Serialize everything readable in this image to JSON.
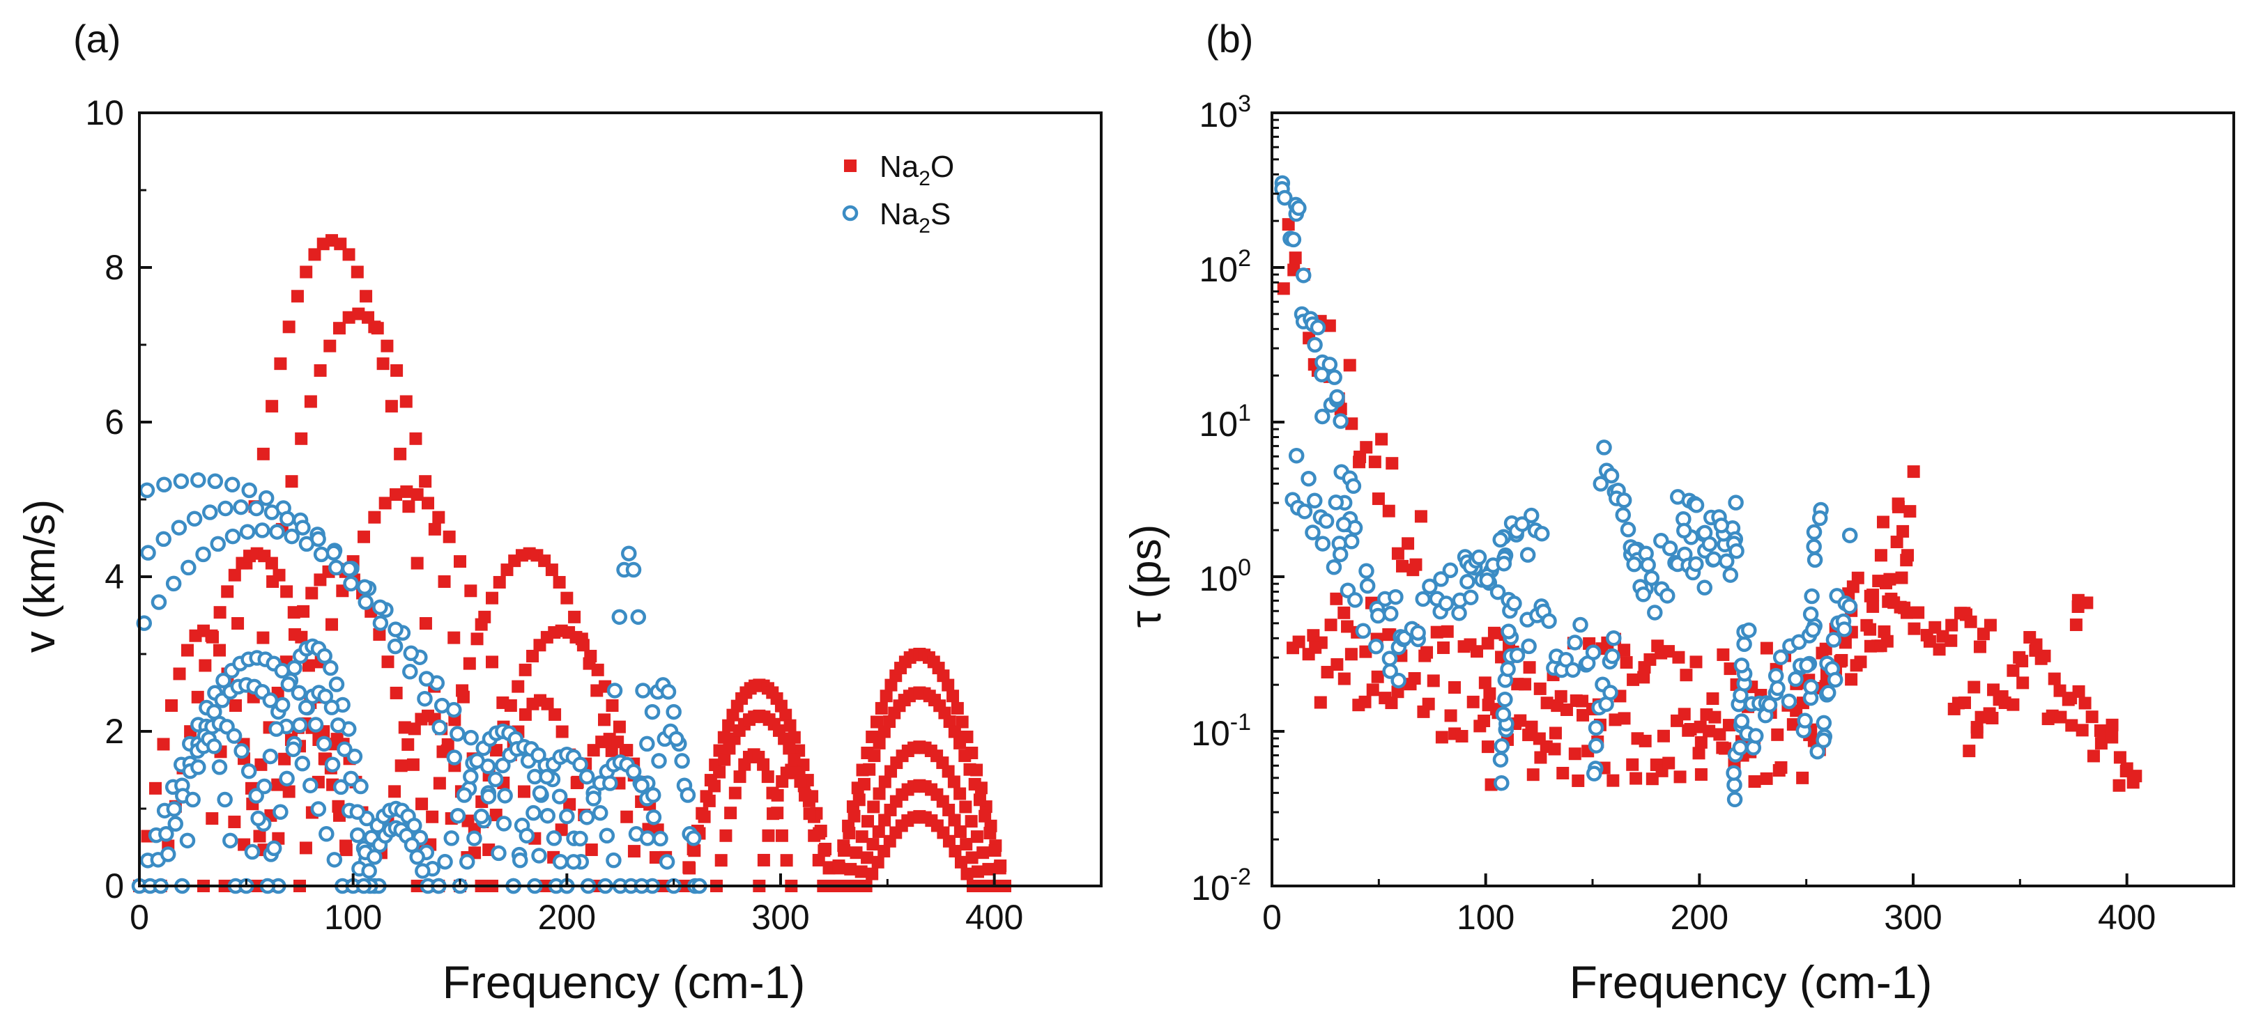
{
  "colors": {
    "na2o": "#e3201f",
    "na2s": "#3b8cc4",
    "axis": "#111111"
  },
  "chart_data": [
    {
      "panel_label": "(a)",
      "type": "scatter",
      "xlabel": "Frequency (cm-1)",
      "ylabel": "v (km/s)",
      "xlim": [
        0,
        450
      ],
      "ylim": [
        0,
        10
      ],
      "xticks": [
        "0",
        "100",
        "200",
        "300",
        "400"
      ],
      "yticks": [
        "0",
        "2",
        "4",
        "6",
        "8",
        "10"
      ],
      "legend": {
        "position": "top-right",
        "entries": [
          {
            "base": "Na",
            "sub": "2",
            "rest": "O",
            "marker": "square"
          },
          {
            "base": "Na",
            "sub": "2",
            "rest": "S",
            "marker": "circle"
          }
        ]
      },
      "series": [
        {
          "name": "Na2O",
          "marker": "square",
          "description": "group velocity branches",
          "branches": [
            {
              "f0": 30,
              "f1": 150,
              "peak": 8.35,
              "n": 30
            },
            {
              "f0": 40,
              "f1": 165,
              "peak": 7.4,
              "n": 28
            },
            {
              "f0": 60,
              "f1": 190,
              "peak": 5.1,
              "n": 26
            },
            {
              "f0": 10,
              "f1": 100,
              "peak": 4.3,
              "n": 26
            },
            {
              "f0": 45,
              "f1": 140,
              "peak": 4.1,
              "n": 24
            },
            {
              "f0": 130,
              "f1": 235,
              "peak": 4.3,
              "n": 30
            },
            {
              "f0": 150,
              "f1": 245,
              "peak": 3.3,
              "n": 28
            },
            {
              "f0": 0,
              "f1": 60,
              "peak": 3.3,
              "n": 16
            },
            {
              "f0": 55,
              "f1": 100,
              "peak": 2.1,
              "n": 14
            },
            {
              "f0": 75,
              "f1": 110,
              "peak": 1.9,
              "n": 12
            },
            {
              "f0": 110,
              "f1": 160,
              "peak": 2.2,
              "n": 16
            },
            {
              "f0": 160,
              "f1": 215,
              "peak": 2.4,
              "n": 16
            },
            {
              "f0": 190,
              "f1": 250,
              "peak": 1.9,
              "n": 16
            },
            {
              "f0": 255,
              "f1": 325,
              "peak": 2.6,
              "n": 34
            },
            {
              "f0": 255,
              "f1": 325,
              "peak": 2.2,
              "n": 30
            },
            {
              "f0": 270,
              "f1": 305,
              "peak": 1.7,
              "n": 16
            },
            {
              "f0": 290,
              "f1": 320,
              "peak": 1.5,
              "n": 14
            },
            {
              "f0": 325,
              "f1": 405,
              "peak": 3.0,
              "n": 36
            },
            {
              "f0": 325,
              "f1": 405,
              "peak": 2.5,
              "n": 34
            },
            {
              "f0": 330,
              "f1": 400,
              "peak": 1.8,
              "n": 26
            },
            {
              "f0": 335,
              "f1": 395,
              "peak": 1.3,
              "n": 22
            },
            {
              "f0": 340,
              "f1": 390,
              "peak": 0.9,
              "n": 18
            }
          ]
        },
        {
          "name": "Na2S",
          "marker": "circle",
          "description": "group velocity branches",
          "branches": [
            {
              "f0": -140,
              "f1": 195,
              "peak": 5.25,
              "n": 42
            },
            {
              "f0": -90,
              "f1": 185,
              "peak": 4.9,
              "n": 38
            },
            {
              "f0": -60,
              "f1": 175,
              "peak": 4.6,
              "n": 34
            },
            {
              "f0": 0,
              "f1": 110,
              "peak": 2.95,
              "n": 28
            },
            {
              "f0": 5,
              "f1": 95,
              "peak": 2.6,
              "n": 24
            },
            {
              "f0": 10,
              "f1": 65,
              "peak": 2.1,
              "n": 16
            },
            {
              "f0": 20,
              "f1": 45,
              "peak": 1.9,
              "n": 10
            },
            {
              "f0": 50,
              "f1": 112,
              "peak": 3.1,
              "n": 22
            },
            {
              "f0": 60,
              "f1": 108,
              "peak": 2.5,
              "n": 16
            },
            {
              "f0": 100,
              "f1": 140,
              "peak": 1.0,
              "n": 14
            },
            {
              "f0": 105,
              "f1": 135,
              "peak": 0.75,
              "n": 12
            },
            {
              "f0": 140,
              "f1": 200,
              "peak": 2.0,
              "n": 20
            },
            {
              "f0": 150,
              "f1": 210,
              "peak": 1.8,
              "n": 18
            },
            {
              "f0": 175,
              "f1": 225,
              "peak": 1.7,
              "n": 16
            },
            {
              "f0": 200,
              "f1": 250,
              "peak": 1.6,
              "n": 16
            },
            {
              "f0": 218,
              "f1": 240,
              "peak": 4.3,
              "n": 10
            },
            {
              "f0": 230,
              "f1": 260,
              "peak": 2.6,
              "n": 12
            },
            {
              "f0": 235,
              "f1": 262,
              "peak": 2.0,
              "n": 10
            }
          ]
        }
      ]
    },
    {
      "panel_label": "(b)",
      "type": "scatter",
      "xlabel": "Frequency (cm-1)",
      "ylabel": "τ (ps)",
      "yscale": "log",
      "xlim": [
        0,
        450
      ],
      "ylim": [
        0.01,
        1000
      ],
      "xticks": [
        "0",
        "100",
        "200",
        "300",
        "400"
      ],
      "yticks": [
        {
          "base": "10",
          "exp": "-2"
        },
        {
          "base": "10",
          "exp": "-1"
        },
        {
          "base": "10",
          "exp": "0"
        },
        {
          "base": "10",
          "exp": "1"
        },
        {
          "base": "10",
          "exp": "2"
        },
        {
          "base": "10",
          "exp": "3"
        }
      ],
      "series": [
        {
          "name": "Na2O",
          "marker": "square",
          "description": "phonon lifetime",
          "segments": [
            {
              "f0": 5,
              "f1": 70,
              "t0": 100,
              "t1": 1.2,
              "n": 28,
              "spread": 0.35
            },
            {
              "f0": 10,
              "f1": 110,
              "t0": 0.6,
              "t1": 0.2,
              "n": 30,
              "spread": 0.25
            },
            {
              "f0": 20,
              "f1": 100,
              "t0": 0.25,
              "t1": 0.12,
              "n": 24,
              "spread": 0.2
            },
            {
              "f0": 100,
              "f1": 255,
              "t0": 0.2,
              "t1": 0.15,
              "n": 70,
              "spread": 0.35
            },
            {
              "f0": 100,
              "f1": 255,
              "t0": 0.08,
              "t1": 0.08,
              "n": 50,
              "spread": 0.25
            },
            {
              "f0": 255,
              "f1": 300,
              "t0": 0.15,
              "t1": 3.0,
              "n": 40,
              "spread": 0.35
            },
            {
              "f0": 280,
              "f1": 335,
              "t0": 0.5,
              "t1": 0.45,
              "n": 24,
              "spread": 0.15
            },
            {
              "f0": 320,
              "f1": 360,
              "t0": 0.1,
              "t1": 0.3,
              "n": 22,
              "spread": 0.2
            },
            {
              "f0": 360,
              "f1": 405,
              "t0": 0.2,
              "t1": 0.05,
              "n": 24,
              "spread": 0.2
            },
            {
              "f0": 375,
              "f1": 380,
              "t0": 0.6,
              "t1": 0.6,
              "n": 3,
              "spread": 0.1
            }
          ]
        },
        {
          "name": "Na2S",
          "marker": "circle",
          "description": "phonon lifetime",
          "segments": [
            {
              "f0": 4,
              "f1": 40,
              "t0": 450,
              "t1": 2.0,
              "n": 30,
              "spread": 0.3
            },
            {
              "f0": 10,
              "f1": 60,
              "t0": 5.0,
              "t1": 0.3,
              "n": 28,
              "spread": 0.3
            },
            {
              "f0": 55,
              "f1": 110,
              "t0": 0.5,
              "t1": 1.3,
              "n": 26,
              "spread": 0.2
            },
            {
              "f0": 90,
              "f1": 125,
              "t0": 1.0,
              "t1": 2.2,
              "n": 18,
              "spread": 0.15
            },
            {
              "f0": 108,
              "f1": 112,
              "t0": 0.05,
              "t1": 0.6,
              "n": 12,
              "spread": 0.05
            },
            {
              "f0": 112,
              "f1": 150,
              "t0": 0.5,
              "t1": 0.3,
              "n": 18,
              "spread": 0.2
            },
            {
              "f0": 150,
              "f1": 160,
              "t0": 0.05,
              "t1": 0.4,
              "n": 10,
              "spread": 0.1
            },
            {
              "f0": 155,
              "f1": 175,
              "t0": 5.5,
              "t1": 1.0,
              "n": 16,
              "spread": 0.15
            },
            {
              "f0": 170,
              "f1": 218,
              "t0": 0.8,
              "t1": 2.0,
              "n": 26,
              "spread": 0.25
            },
            {
              "f0": 190,
              "f1": 218,
              "t0": 3.0,
              "t1": 1.2,
              "n": 14,
              "spread": 0.15
            },
            {
              "f0": 216,
              "f1": 222,
              "t0": 0.04,
              "t1": 0.5,
              "n": 14,
              "spread": 0.05
            },
            {
              "f0": 222,
              "f1": 250,
              "t0": 0.1,
              "t1": 0.35,
              "n": 18,
              "spread": 0.2
            },
            {
              "f0": 250,
              "f1": 256,
              "t0": 0.1,
              "t1": 3.0,
              "n": 14,
              "spread": 0.1
            },
            {
              "f0": 256,
              "f1": 270,
              "t0": 0.08,
              "t1": 1.2,
              "n": 16,
              "spread": 0.2
            }
          ]
        }
      ]
    }
  ]
}
